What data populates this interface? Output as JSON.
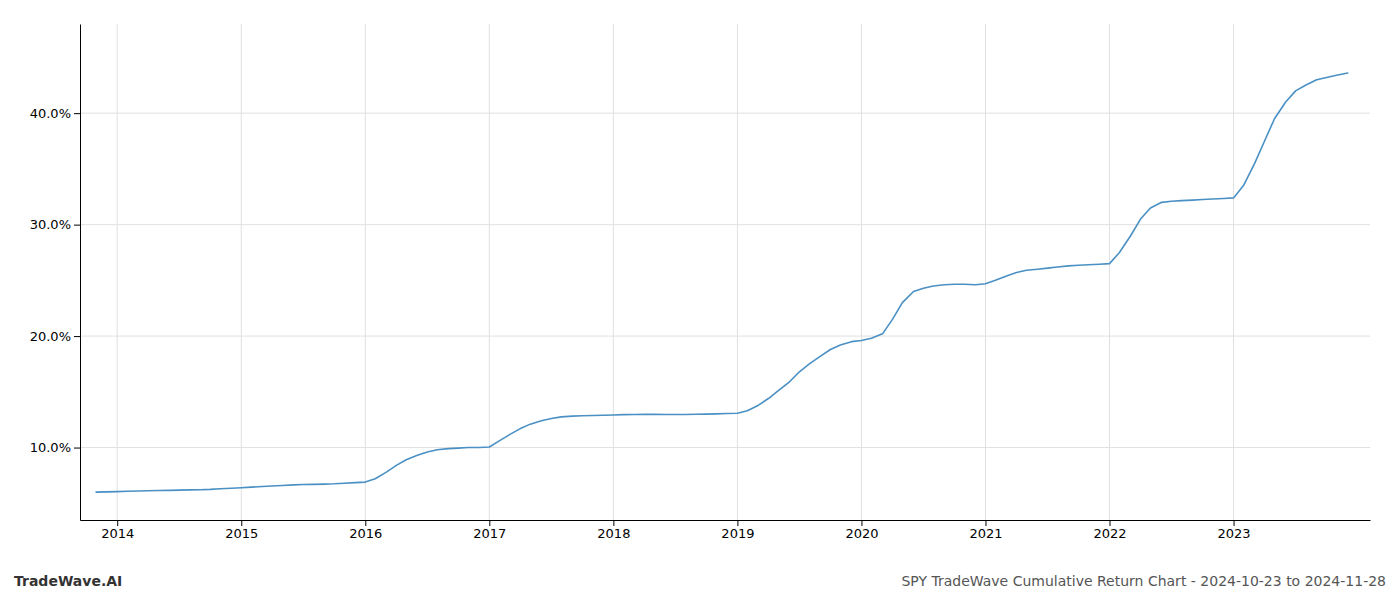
{
  "chart_data": {
    "type": "line",
    "title": "SPY TradeWave Cumulative Return Chart - 2024-10-23 to 2024-11-28",
    "annotations": [
      "TradeWave.AI"
    ],
    "color": "#4a90c4",
    "grid": true,
    "x": [
      2013.83,
      2014.0,
      2014.08,
      2014.17,
      2014.25,
      2014.33,
      2014.42,
      2014.5,
      2014.58,
      2014.67,
      2014.75,
      2014.83,
      2014.92,
      2015.0,
      2015.08,
      2015.17,
      2015.25,
      2015.33,
      2015.42,
      2015.5,
      2015.58,
      2015.67,
      2015.75,
      2015.83,
      2015.92,
      2016.0,
      2016.08,
      2016.17,
      2016.25,
      2016.33,
      2016.42,
      2016.5,
      2016.58,
      2016.67,
      2016.75,
      2016.83,
      2016.92,
      2017.0,
      2017.08,
      2017.17,
      2017.25,
      2017.33,
      2017.42,
      2017.5,
      2017.58,
      2017.67,
      2017.75,
      2017.83,
      2017.92,
      2018.0,
      2018.08,
      2018.17,
      2018.25,
      2018.33,
      2018.42,
      2018.5,
      2018.58,
      2018.67,
      2018.75,
      2018.83,
      2018.92,
      2019.0,
      2019.08,
      2019.17,
      2019.25,
      2019.33,
      2019.42,
      2019.5,
      2019.58,
      2019.67,
      2019.75,
      2019.83,
      2019.92,
      2020.0,
      2020.08,
      2020.17,
      2020.25,
      2020.33,
      2020.42,
      2020.5,
      2020.58,
      2020.67,
      2020.75,
      2020.83,
      2020.92,
      2021.0,
      2021.08,
      2021.17,
      2021.25,
      2021.33,
      2021.42,
      2021.5,
      2021.58,
      2021.67,
      2021.75,
      2021.83,
      2021.92,
      2022.0,
      2022.08,
      2022.17,
      2022.25,
      2022.33,
      2022.42,
      2022.5,
      2022.58,
      2022.67,
      2022.75,
      2022.83,
      2022.92,
      2023.0,
      2023.08,
      2023.17,
      2023.25,
      2023.33,
      2023.42,
      2023.5,
      2023.58,
      2023.67,
      2023.75,
      2023.83,
      2023.92
    ],
    "values": [
      6.0,
      6.05,
      6.08,
      6.1,
      6.12,
      6.14,
      6.16,
      6.18,
      6.2,
      6.22,
      6.25,
      6.3,
      6.35,
      6.4,
      6.45,
      6.5,
      6.55,
      6.6,
      6.65,
      6.68,
      6.7,
      6.72,
      6.75,
      6.8,
      6.85,
      6.9,
      7.2,
      7.8,
      8.4,
      8.9,
      9.3,
      9.6,
      9.8,
      9.9,
      9.95,
      10.0,
      10.0,
      10.05,
      10.6,
      11.2,
      11.7,
      12.1,
      12.4,
      12.6,
      12.75,
      12.82,
      12.85,
      12.88,
      12.9,
      12.92,
      12.95,
      12.97,
      12.98,
      12.98,
      12.97,
      12.96,
      12.97,
      12.99,
      13.0,
      13.02,
      13.05,
      13.08,
      13.3,
      13.8,
      14.4,
      15.1,
      15.9,
      16.8,
      17.5,
      18.2,
      18.8,
      19.2,
      19.5,
      19.6,
      19.8,
      20.2,
      21.5,
      23.0,
      24.0,
      24.3,
      24.5,
      24.6,
      24.65,
      24.65,
      24.6,
      24.7,
      25.0,
      25.4,
      25.7,
      25.9,
      26.0,
      26.1,
      26.2,
      26.3,
      26.35,
      26.4,
      26.45,
      26.5,
      27.5,
      29.0,
      30.5,
      31.5,
      32.0,
      32.1,
      32.15,
      32.2,
      32.25,
      32.3,
      32.35,
      32.4,
      33.5,
      35.5,
      37.5,
      39.5,
      41.0,
      42.0,
      42.5,
      43.0,
      43.2,
      43.4,
      43.6
    ],
    "xlim": [
      2013.7,
      2024.1
    ],
    "xticks": [
      2014,
      2015,
      2016,
      2017,
      2018,
      2019,
      2020,
      2021,
      2022,
      2023
    ],
    "ylim": [
      3.5,
      48.0
    ],
    "yticks": [
      {
        "value": 10.0,
        "label": "10.0%"
      },
      {
        "value": 20.0,
        "label": "20.0%"
      },
      {
        "value": 30.0,
        "label": "30.0%"
      },
      {
        "value": 40.0,
        "label": "40.0%"
      }
    ]
  }
}
